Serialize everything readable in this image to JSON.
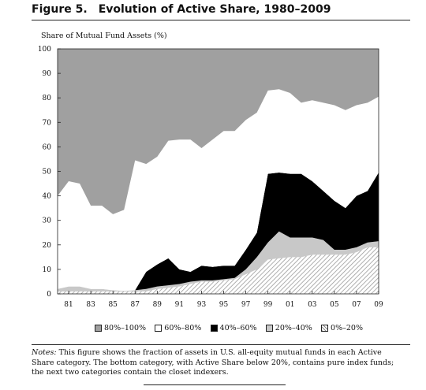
{
  "figure": {
    "number": "Figure 5.",
    "title": "Evolution of Active Share, 1980–2009"
  },
  "notes": {
    "lead": "Notes:",
    "text": "This figure shows the fraction of assets in U.S. all-equity mutual funds in each Active Share category. The bottom category, with Active Share below 20%, contains pure index funds; the next two categories contain the closet indexers."
  },
  "chart_data": {
    "type": "area",
    "stacked": true,
    "ylabel": "Share of Mutual Fund Assets (%)",
    "xlabel": "",
    "ylim": [
      0,
      100
    ],
    "yticks": [
      0,
      10,
      20,
      30,
      40,
      50,
      60,
      70,
      80,
      90,
      100
    ],
    "xlim": [
      1980,
      2009
    ],
    "xticks": [
      1981,
      1983,
      1985,
      1987,
      1989,
      1991,
      1993,
      1995,
      1997,
      1999,
      2001,
      2003,
      2005,
      2007,
      2009
    ],
    "xtick_labels": [
      "81",
      "83",
      "85",
      "87",
      "89",
      "91",
      "93",
      "95",
      "97",
      "99",
      "01",
      "03",
      "05",
      "07",
      "09"
    ],
    "x": [
      1980,
      1981,
      1982,
      1983,
      1984,
      1985,
      1986,
      1987,
      1988,
      1989,
      1990,
      1991,
      1992,
      1993,
      1994,
      1995,
      1996,
      1997,
      1998,
      1999,
      2000,
      2001,
      2002,
      2003,
      2004,
      2005,
      2006,
      2007,
      2008,
      2009
    ],
    "grid": false,
    "legend_position": "bottom",
    "series": [
      {
        "name": "0%–20%",
        "fill": "hatched",
        "values": [
          1,
          1,
          1,
          1,
          1,
          1,
          1,
          1,
          1,
          2,
          2.5,
          3,
          4,
          5,
          5,
          5.5,
          6,
          8,
          10,
          14,
          14.5,
          15,
          15,
          16,
          16,
          16,
          16,
          17,
          19,
          19
        ]
      },
      {
        "name": "20%–40%",
        "fill": "#c8c8c8",
        "values": [
          1,
          2,
          2,
          1,
          1,
          0.5,
          0.3,
          0.5,
          1,
          1,
          1,
          1,
          1,
          0.5,
          0.5,
          0.5,
          0.5,
          2,
          5,
          7,
          11,
          8,
          8,
          7,
          6,
          2,
          2,
          2,
          2,
          2.5
        ]
      },
      {
        "name": "40%–60%",
        "fill": "#000000",
        "values": [
          0,
          0,
          0,
          0,
          0,
          0,
          0,
          0,
          7,
          9,
          11,
          6,
          4,
          6,
          5.5,
          5.5,
          5,
          8,
          10,
          28,
          24,
          26,
          26,
          23,
          20,
          20,
          17,
          21,
          21,
          28
        ]
      },
      {
        "name": "60%–80%",
        "fill": "#ffffff",
        "values": [
          38,
          43,
          42,
          34,
          34,
          31,
          33,
          53,
          44,
          44,
          48,
          53,
          54,
          48,
          52,
          55,
          55,
          53,
          49,
          34,
          34,
          33,
          29,
          33,
          36,
          39,
          40,
          37,
          36,
          31
        ]
      },
      {
        "name": "80%–100%",
        "fill": "#a0a0a0",
        "values": [
          60,
          54,
          55,
          64,
          64,
          67.5,
          65.7,
          45.5,
          47,
          44,
          37.5,
          37,
          37,
          40.5,
          37,
          33.5,
          33.5,
          29,
          26,
          17,
          16.5,
          18,
          22,
          21,
          22,
          23,
          25,
          23,
          22,
          19.5
        ]
      }
    ],
    "legend_order": [
      "80%–100%",
      "60%–80%",
      "40%–60%",
      "20%–40%",
      "0%–20%"
    ]
  }
}
